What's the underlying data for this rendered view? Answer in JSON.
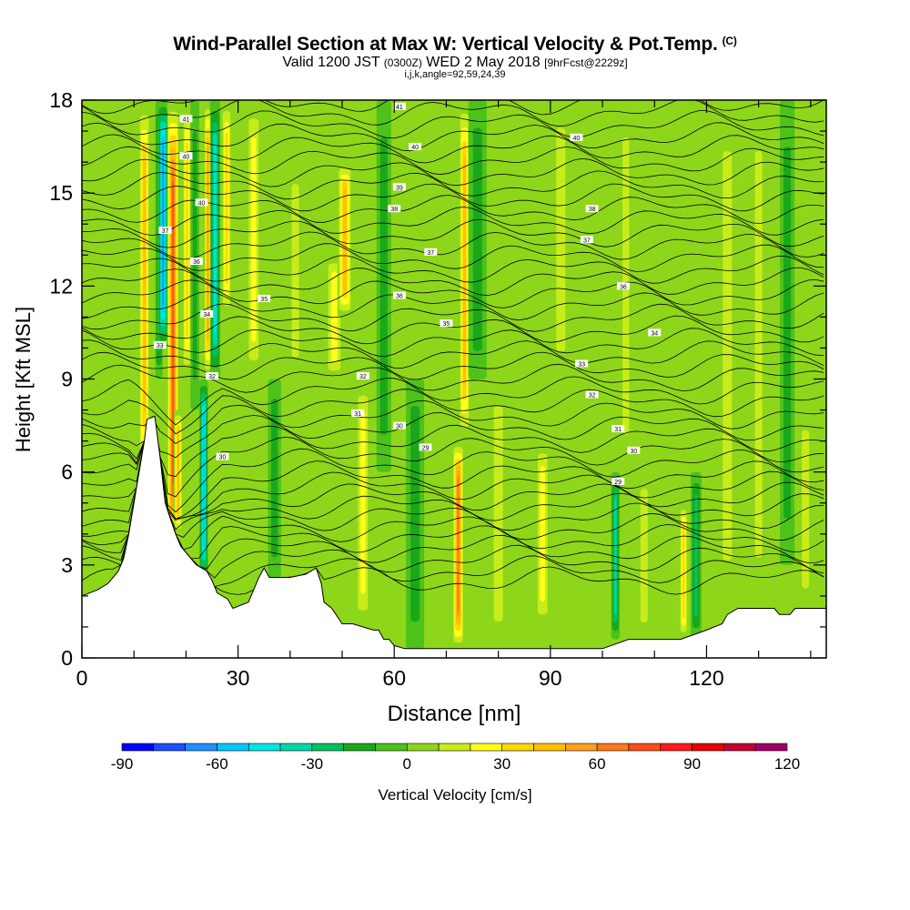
{
  "title": "Wind-Parallel Section at Max W: Vertical Velocity & Pot.Temp.",
  "copyright": "(C)",
  "subtitle_main": "Valid 1200 JST",
  "subtitle_utc": "(0300Z)",
  "subtitle_date": "WED 2 May 2018",
  "subtitle_fcst": "[9hrFcst@2229z]",
  "ijk_line": "i,j,k,angle=92,59,24,39",
  "colorbar_title": "Vertical Velocity [cm/s]",
  "colors": {
    "background": "#ffffff",
    "terrain": "#ffffff",
    "contour": "#000000",
    "colorbar_levels": [
      "#0000ff",
      "#1a4fff",
      "#1e90ff",
      "#00c8ff",
      "#00e5e5",
      "#00d8a8",
      "#00c060",
      "#1aa81a",
      "#4cc21a",
      "#8ed61a",
      "#c8ec1a",
      "#ffff1a",
      "#ffd700",
      "#ffbf00",
      "#ffa01a",
      "#ff781a",
      "#ff4e1a",
      "#ff1a1a",
      "#e60000",
      "#c40033",
      "#a00066",
      "#8000a0"
    ]
  },
  "chart_data": {
    "type": "heatmap",
    "xlabel": "Distance [nm]",
    "ylabel": "Height [Kft MSL]",
    "xlim": [
      0,
      143
    ],
    "ylim": [
      0,
      18
    ],
    "x_ticks": [
      0,
      30,
      60,
      90,
      120
    ],
    "y_ticks": [
      0,
      3,
      6,
      9,
      12,
      15,
      18
    ],
    "colorbar": {
      "label": "Vertical Velocity [cm/s]",
      "min": -90,
      "max": 120,
      "step": 10,
      "tick_labels": [
        -90,
        -60,
        -30,
        0,
        30,
        60,
        90,
        120
      ]
    },
    "terrain": [
      {
        "x": 0,
        "z": 2.0
      },
      {
        "x": 3,
        "z": 2.2
      },
      {
        "x": 5,
        "z": 2.4
      },
      {
        "x": 6,
        "z": 2.6
      },
      {
        "x": 7,
        "z": 2.8
      },
      {
        "x": 8,
        "z": 3.2
      },
      {
        "x": 9,
        "z": 4.0
      },
      {
        "x": 10,
        "z": 5.0
      },
      {
        "x": 11,
        "z": 6.0
      },
      {
        "x": 12,
        "z": 7.0
      },
      {
        "x": 12.5,
        "z": 7.7
      },
      {
        "x": 14,
        "z": 7.8
      },
      {
        "x": 15,
        "z": 6.5
      },
      {
        "x": 16,
        "z": 5.0
      },
      {
        "x": 17,
        "z": 4.5
      },
      {
        "x": 18,
        "z": 4.0
      },
      {
        "x": 19,
        "z": 3.6
      },
      {
        "x": 20,
        "z": 3.4
      },
      {
        "x": 21,
        "z": 3.2
      },
      {
        "x": 22,
        "z": 3.0
      },
      {
        "x": 24,
        "z": 2.8
      },
      {
        "x": 25,
        "z": 2.5
      },
      {
        "x": 26,
        "z": 2.1
      },
      {
        "x": 28,
        "z": 1.9
      },
      {
        "x": 29,
        "z": 1.6
      },
      {
        "x": 32,
        "z": 1.8
      },
      {
        "x": 34,
        "z": 2.6
      },
      {
        "x": 35,
        "z": 2.9
      },
      {
        "x": 36,
        "z": 2.6
      },
      {
        "x": 40,
        "z": 2.6
      },
      {
        "x": 43,
        "z": 2.7
      },
      {
        "x": 45,
        "z": 2.9
      },
      {
        "x": 46,
        "z": 2.4
      },
      {
        "x": 46.5,
        "z": 1.8
      },
      {
        "x": 48,
        "z": 1.6
      },
      {
        "x": 50,
        "z": 1.1
      },
      {
        "x": 52,
        "z": 1.1
      },
      {
        "x": 56,
        "z": 0.9
      },
      {
        "x": 57,
        "z": 0.9
      },
      {
        "x": 58,
        "z": 0.6
      },
      {
        "x": 59,
        "z": 0.6
      },
      {
        "x": 60,
        "z": 0.4
      },
      {
        "x": 62,
        "z": 0.3
      },
      {
        "x": 70,
        "z": 0.3
      },
      {
        "x": 80,
        "z": 0.3
      },
      {
        "x": 90,
        "z": 0.3
      },
      {
        "x": 95,
        "z": 0.3
      },
      {
        "x": 100,
        "z": 0.3
      },
      {
        "x": 105,
        "z": 0.6
      },
      {
        "x": 110,
        "z": 0.6
      },
      {
        "x": 115,
        "z": 0.6
      },
      {
        "x": 120,
        "z": 0.9
      },
      {
        "x": 123,
        "z": 1.1
      },
      {
        "x": 124,
        "z": 1.4
      },
      {
        "x": 126,
        "z": 1.6
      },
      {
        "x": 130,
        "z": 1.6
      },
      {
        "x": 133,
        "z": 1.6
      },
      {
        "x": 134,
        "z": 1.4
      },
      {
        "x": 136,
        "z": 1.4
      },
      {
        "x": 137,
        "z": 1.6
      },
      {
        "x": 143,
        "z": 1.6
      }
    ],
    "vv_bands": [
      {
        "x": 12,
        "w": 1.5,
        "z0": 6,
        "z1": 18,
        "v": 50
      },
      {
        "x": 14.8,
        "w": 1.0,
        "z0": 9,
        "z1": 18,
        "v": -40
      },
      {
        "x": 15.6,
        "w": 1.4,
        "z0": 10,
        "z1": 18,
        "v": -70
      },
      {
        "x": 17.5,
        "w": 1.6,
        "z0": 3,
        "z1": 18,
        "v": 80
      },
      {
        "x": 18.5,
        "w": 1.2,
        "z0": 4,
        "z1": 8,
        "v": 45
      },
      {
        "x": 20.2,
        "w": 1.3,
        "z0": 9,
        "z1": 18,
        "v": 40
      },
      {
        "x": 21.7,
        "w": 1.2,
        "z0": 8,
        "z1": 18,
        "v": -20
      },
      {
        "x": 23.4,
        "w": 1.2,
        "z0": 2.5,
        "z1": 9,
        "v": -60
      },
      {
        "x": 24.2,
        "w": 1.0,
        "z0": 9,
        "z1": 18,
        "v": 60
      },
      {
        "x": 25.6,
        "w": 1.4,
        "z0": 9,
        "z1": 18,
        "v": -45
      },
      {
        "x": 27.8,
        "w": 1.4,
        "z0": 11,
        "z1": 18,
        "v": 35
      },
      {
        "x": 33,
        "w": 2.0,
        "z0": 9,
        "z1": 18,
        "v": 25
      },
      {
        "x": 37,
        "w": 1.8,
        "z0": 2.6,
        "z1": 9,
        "v": -15
      },
      {
        "x": 41,
        "w": 2.0,
        "z0": 9,
        "z1": 16,
        "v": 18
      },
      {
        "x": 48.5,
        "w": 2.5,
        "z0": 9,
        "z1": 13,
        "v": 30
      },
      {
        "x": 50.5,
        "w": 2.0,
        "z0": 11,
        "z1": 16,
        "v": 45
      },
      {
        "x": 54,
        "w": 2.0,
        "z0": 1,
        "z1": 9,
        "v": 22
      },
      {
        "x": 58,
        "w": 2.0,
        "z0": 6,
        "z1": 18,
        "v": -18
      },
      {
        "x": 64,
        "w": 2.5,
        "z0": 0.3,
        "z1": 9,
        "v": -15
      },
      {
        "x": 72.3,
        "w": 1.5,
        "z0": 0.3,
        "z1": 7,
        "v": 70
      },
      {
        "x": 73.5,
        "w": 1.5,
        "z0": 7,
        "z1": 18,
        "v": 50
      },
      {
        "x": 76,
        "w": 2.5,
        "z0": 9,
        "z1": 18,
        "v": -20
      },
      {
        "x": 80,
        "w": 2.5,
        "z0": 0.3,
        "z1": 9,
        "v": 18
      },
      {
        "x": 88.5,
        "w": 2.0,
        "z0": 1,
        "z1": 7,
        "v": 25
      },
      {
        "x": 92,
        "w": 2.5,
        "z0": 9,
        "z1": 18,
        "v": 20
      },
      {
        "x": 102.5,
        "w": 1.2,
        "z0": 0.6,
        "z1": 6,
        "v": -40
      },
      {
        "x": 104.5,
        "w": 1.8,
        "z0": 6,
        "z1": 18,
        "v": 20
      },
      {
        "x": 108,
        "w": 2.0,
        "z0": 0.6,
        "z1": 6,
        "v": 18
      },
      {
        "x": 115.6,
        "w": 1.2,
        "z0": 0.6,
        "z1": 5,
        "v": 40
      },
      {
        "x": 118,
        "w": 1.5,
        "z0": 0.6,
        "z1": 6,
        "v": -25
      },
      {
        "x": 124,
        "w": 2.5,
        "z0": 1.5,
        "z1": 18,
        "v": 18
      },
      {
        "x": 130,
        "w": 2.0,
        "z0": 1.6,
        "z1": 18,
        "v": 12
      },
      {
        "x": 135.5,
        "w": 2.0,
        "z0": 3,
        "z1": 18,
        "v": -15
      },
      {
        "x": 139,
        "w": 2.0,
        "z0": 1.6,
        "z1": 8,
        "v": 15
      }
    ],
    "theta_contour_labels": [
      {
        "x": 20,
        "z": 17.4,
        "text": "41"
      },
      {
        "x": 20,
        "z": 16.2,
        "text": "40"
      },
      {
        "x": 23,
        "z": 14.7,
        "text": "40"
      },
      {
        "x": 16,
        "z": 13.8,
        "text": "37"
      },
      {
        "x": 22,
        "z": 12.8,
        "text": "36"
      },
      {
        "x": 35,
        "z": 11.6,
        "text": "35"
      },
      {
        "x": 24,
        "z": 11.1,
        "text": "34"
      },
      {
        "x": 15,
        "z": 10.1,
        "text": "33"
      },
      {
        "x": 25,
        "z": 9.1,
        "text": "32"
      },
      {
        "x": 54,
        "z": 9.1,
        "text": "32"
      },
      {
        "x": 53,
        "z": 7.9,
        "text": "31"
      },
      {
        "x": 27,
        "z": 6.5,
        "text": "30"
      },
      {
        "x": 61,
        "z": 7.5,
        "text": "30"
      },
      {
        "x": 66,
        "z": 6.8,
        "text": "29"
      },
      {
        "x": 61,
        "z": 17.8,
        "text": "41"
      },
      {
        "x": 64,
        "z": 16.5,
        "text": "40"
      },
      {
        "x": 61,
        "z": 15.2,
        "text": "39"
      },
      {
        "x": 60,
        "z": 14.5,
        "text": "38"
      },
      {
        "x": 67,
        "z": 13.1,
        "text": "37"
      },
      {
        "x": 61,
        "z": 11.7,
        "text": "36"
      },
      {
        "x": 70,
        "z": 10.8,
        "text": "35"
      },
      {
        "x": 95,
        "z": 16.8,
        "text": "40"
      },
      {
        "x": 98,
        "z": 14.5,
        "text": "38"
      },
      {
        "x": 97,
        "z": 13.5,
        "text": "37"
      },
      {
        "x": 104,
        "z": 12.0,
        "text": "36"
      },
      {
        "x": 110,
        "z": 10.5,
        "text": "34"
      },
      {
        "x": 96,
        "z": 9.5,
        "text": "33"
      },
      {
        "x": 98,
        "z": 8.5,
        "text": "32"
      },
      {
        "x": 103,
        "z": 7.4,
        "text": "31"
      },
      {
        "x": 106,
        "z": 6.7,
        "text": "30"
      },
      {
        "x": 103,
        "z": 5.7,
        "text": "29"
      }
    ]
  }
}
